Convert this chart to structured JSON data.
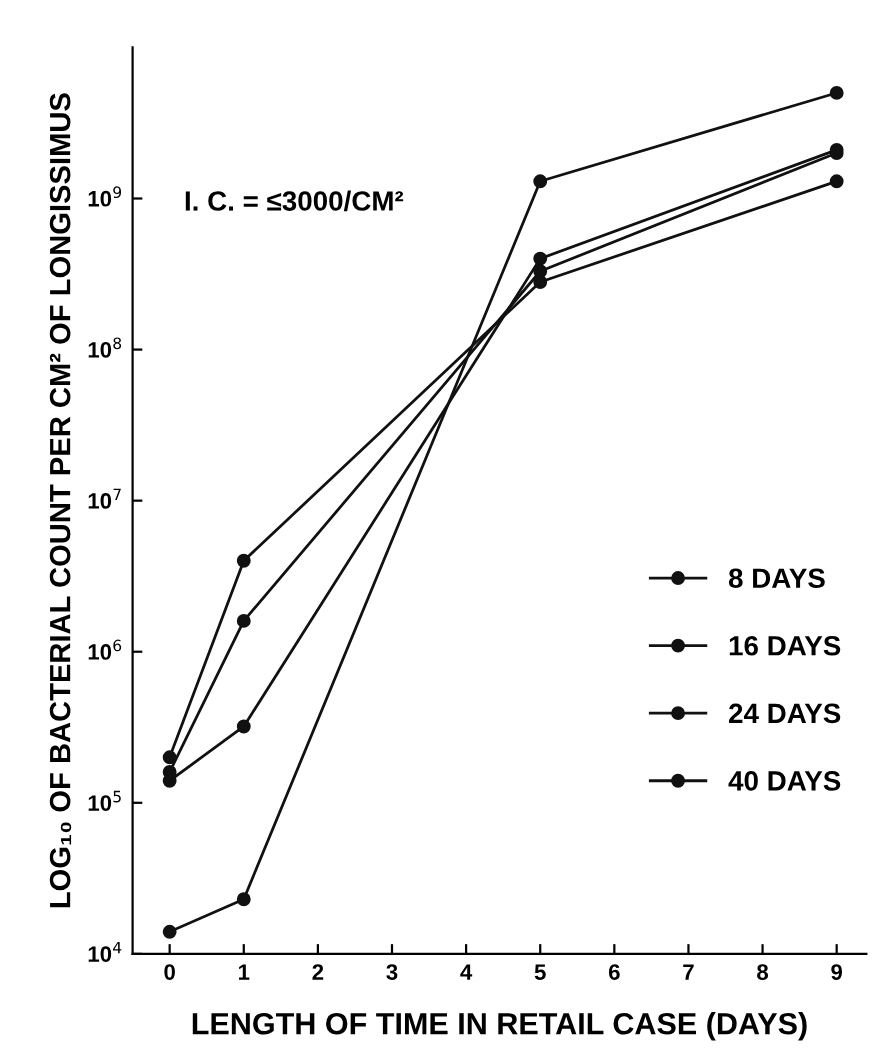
{
  "chart_data": {
    "type": "line",
    "xlabel": "LENGTH OF TIME IN RETAIL CASE (DAYS)",
    "ylabel": "LOG₁₀ OF BACTERIAL COUNT PER CM² OF LONGISSIMUS",
    "annotations": [
      "I. C. = ≤3000/CM²"
    ],
    "x": [
      0,
      1,
      5,
      9
    ],
    "xlim": [
      -0.5,
      9.4
    ],
    "xticks": [
      0,
      1,
      2,
      3,
      4,
      5,
      6,
      7,
      8,
      9
    ],
    "ylim": [
      10000,
      10000000000
    ],
    "log": "y",
    "yticks": [
      {
        "value": 10000,
        "label": "10$^{4}$"
      },
      {
        "value": 100000,
        "label": "10$^{5}$"
      },
      {
        "value": 1000000,
        "label": "10$^{6}$"
      },
      {
        "value": 10000000,
        "label": "10$^{7}$"
      },
      {
        "value": 100000000,
        "label": "10$^{8}$"
      },
      {
        "value": 1000000000,
        "label": "10$^{9}$"
      }
    ],
    "grid": false,
    "legend": "right",
    "marker": "circle",
    "line_style": "solid",
    "series": [
      {
        "name": "8 DAYS",
        "color": "#111111",
        "values": [
          14000,
          23000,
          1300000000,
          5000000000
        ]
      },
      {
        "name": "16 DAYS",
        "color": "#111111",
        "values": [
          140000,
          320000,
          400000000,
          2100000000
        ]
      },
      {
        "name": "24 DAYS",
        "color": "#111111",
        "values": [
          160000,
          1600000,
          330000000,
          2000000000
        ]
      },
      {
        "name": "40 DAYS",
        "color": "#111111",
        "values": [
          200000,
          4000000,
          280000000,
          1300000000
        ]
      }
    ]
  }
}
